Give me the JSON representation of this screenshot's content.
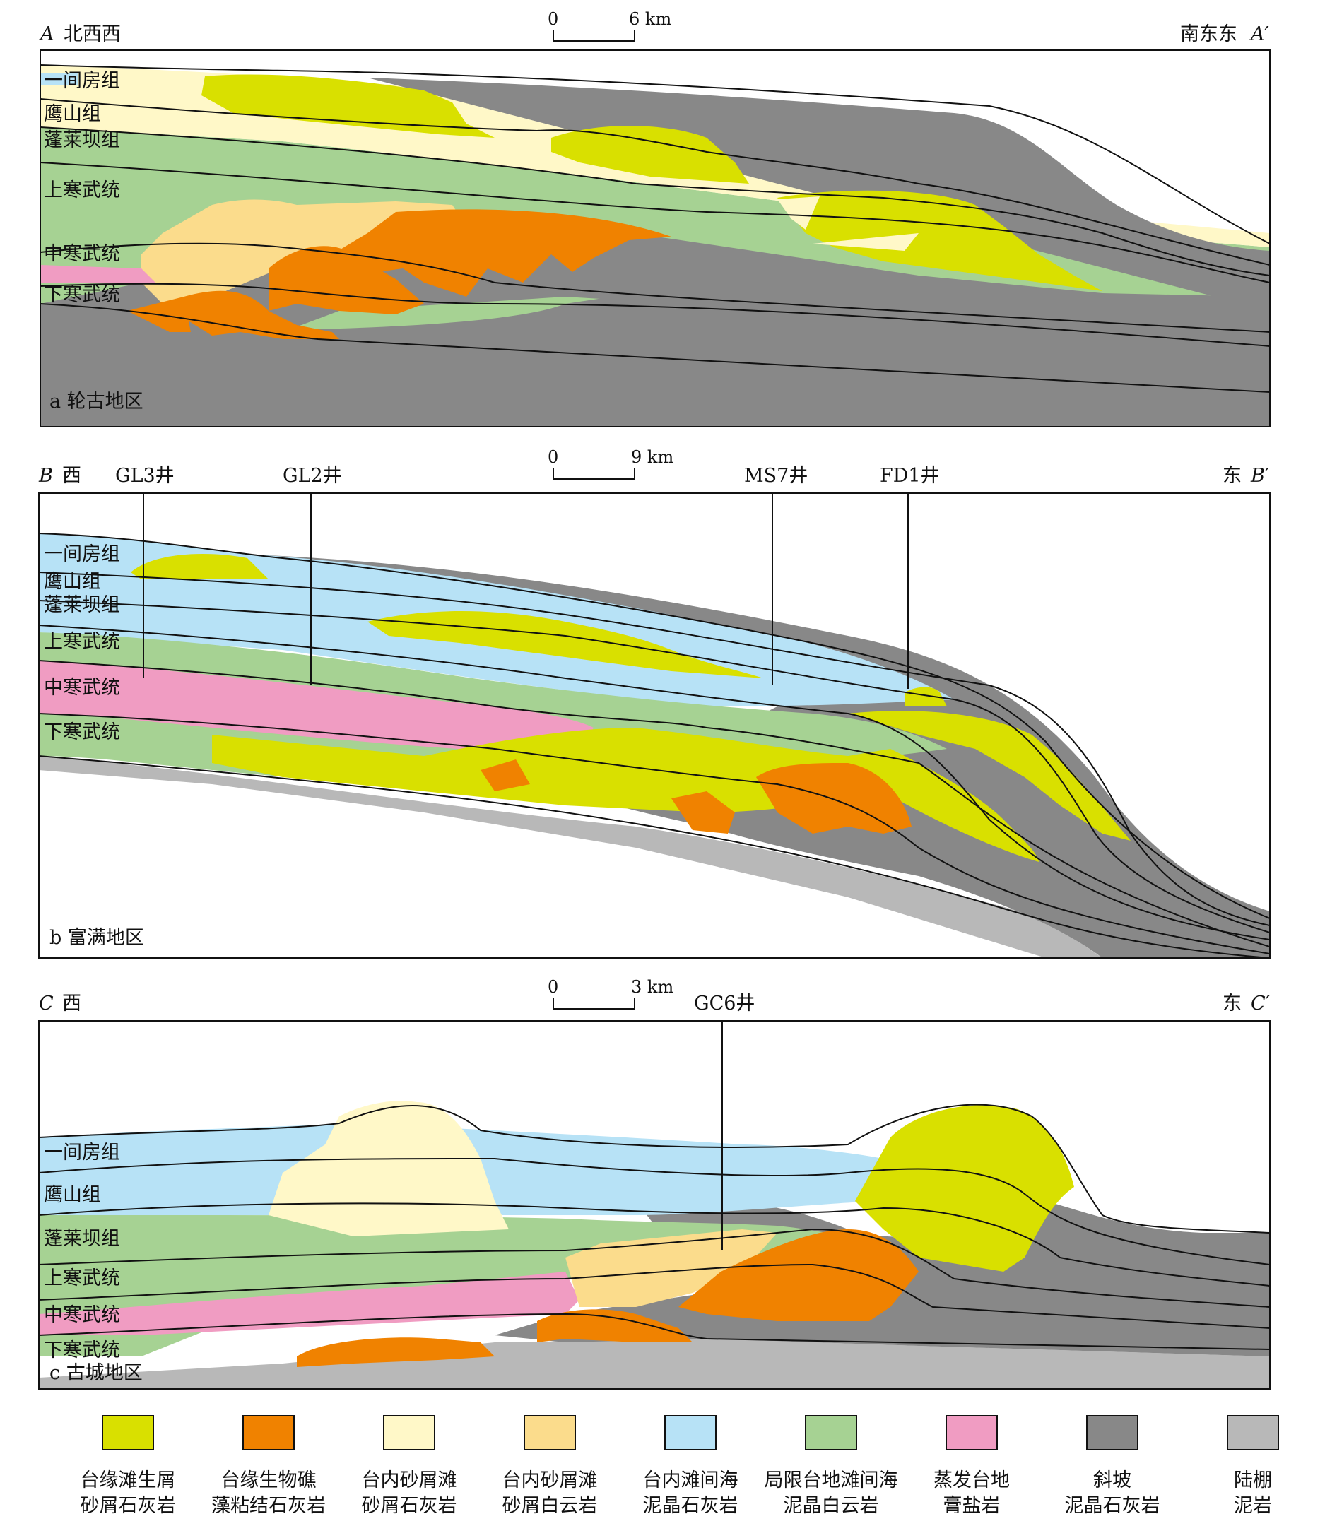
{
  "colors": {
    "margin_bioclastic": "#d9e000",
    "margin_reef": "#f08200",
    "inner_shoal_limestone": "#fff8c8",
    "inner_shoal_dolomite": "#fbdc8c",
    "inner_intershoal_limestone": "#b7e2f6",
    "restricted_dolomite": "#a6d293",
    "evaporite": "#f09cc2",
    "slope": "#888888",
    "shelf": "#b8b8b8"
  },
  "panels": [
    {
      "left_end": "A",
      "left_dir": "北西西",
      "right_dir": "南东东",
      "right_end": "A′",
      "scale_zero": "0",
      "scale_label": "6 km",
      "caption": "a 轮古地区",
      "wells": [],
      "formations": [
        "一间房组",
        "鹰山组",
        "蓬莱坝组",
        "上寒武统",
        "中寒武统",
        "下寒武统"
      ]
    },
    {
      "left_end": "B",
      "left_dir": "西",
      "right_dir": "东",
      "right_end": "B′",
      "scale_zero": "0",
      "scale_label": "9 km",
      "caption": "b 富满地区",
      "wells": [
        "GL3井",
        "GL2井",
        "MS7井",
        "FD1井"
      ],
      "formations": [
        "一间房组",
        "鹰山组",
        "蓬莱坝组",
        "上寒武统",
        "中寒武统",
        "下寒武统"
      ]
    },
    {
      "left_end": "C",
      "left_dir": "西",
      "right_dir": "东",
      "right_end": "C′",
      "scale_zero": "0",
      "scale_label": "3 km",
      "caption": "c 古城地区",
      "wells": [
        "GC6井"
      ],
      "formations": [
        "一间房组",
        "鹰山组",
        "蓬莱坝组",
        "上寒武统",
        "中寒武统",
        "下寒武统"
      ]
    }
  ],
  "legend": [
    {
      "line1": "台缘滩生屑",
      "line2": "砂屑石灰岩",
      "color_key": "margin_bioclastic"
    },
    {
      "line1": "台缘生物礁",
      "line2": "藻粘结石灰岩",
      "color_key": "margin_reef"
    },
    {
      "line1": "台内砂屑滩",
      "line2": "砂屑石灰岩",
      "color_key": "inner_shoal_limestone"
    },
    {
      "line1": "台内砂屑滩",
      "line2": "砂屑白云岩",
      "color_key": "inner_shoal_dolomite"
    },
    {
      "line1": "台内滩间海",
      "line2": "泥晶石灰岩",
      "color_key": "inner_intershoal_limestone"
    },
    {
      "line1": "局限台地滩间海",
      "line2": "泥晶白云岩",
      "color_key": "restricted_dolomite"
    },
    {
      "line1": "蒸发台地",
      "line2": "膏盐岩",
      "color_key": "evaporite"
    },
    {
      "line1": "斜坡",
      "line2": "泥晶石灰岩",
      "color_key": "slope"
    },
    {
      "line1": "陆棚",
      "line2": "泥岩",
      "color_key": "shelf"
    }
  ]
}
